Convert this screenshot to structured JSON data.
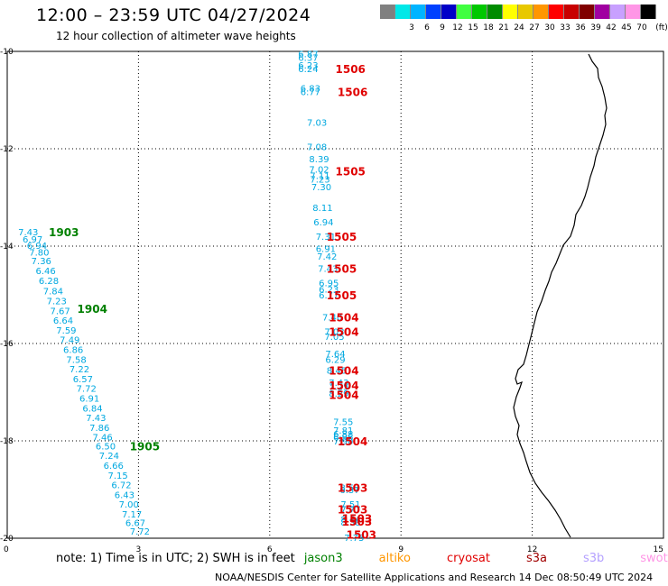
{
  "header": {
    "title": "12:00 – 23:59 UTC 04/27/2024",
    "subtitle": "12 hour collection of altimeter wave heights"
  },
  "colorbar": {
    "unit_label": "(ft)",
    "swatches": [
      {
        "label": "",
        "color": "#808080"
      },
      {
        "label": "3",
        "color": "#00e8e8"
      },
      {
        "label": "6",
        "color": "#00b4ff"
      },
      {
        "label": "9",
        "color": "#0040ff"
      },
      {
        "label": "12",
        "color": "#0000c8"
      },
      {
        "label": "15",
        "color": "#40ff40"
      },
      {
        "label": "18",
        "color": "#00c800"
      },
      {
        "label": "21",
        "color": "#008c00"
      },
      {
        "label": "24",
        "color": "#ffff00"
      },
      {
        "label": "27",
        "color": "#e8c800"
      },
      {
        "label": "30",
        "color": "#ff9600"
      },
      {
        "label": "33",
        "color": "#ff0000"
      },
      {
        "label": "36",
        "color": "#c80000"
      },
      {
        "label": "39",
        "color": "#800000"
      },
      {
        "label": "42",
        "color": "#a000a0"
      },
      {
        "label": "45",
        "color": "#c8a0ff"
      },
      {
        "label": "70",
        "color": "#ff96e6"
      },
      {
        "label": "",
        "color": "#000000"
      }
    ]
  },
  "note": {
    "prefix": "note: 1) Time is in UTC; 2) SWH is in feet",
    "missions": [
      {
        "name": "jason3",
        "color": "#008000"
      },
      {
        "name": "altiko",
        "color": "#ff9600"
      },
      {
        "name": "cryosat",
        "color": "#e00000"
      },
      {
        "name": "s3a",
        "color": "#a00000"
      },
      {
        "name": "s3b",
        "color": "#b4a0ff"
      },
      {
        "name": "swot",
        "color": "#ff96e6"
      }
    ]
  },
  "credit": "NOAA/NESDIS Center for Satellite Applications and Research    14 Dec 08:50:49 UTC 2024",
  "chart_data": {
    "type": "scatter",
    "xlim": [
      0,
      15
    ],
    "ylim": [
      -20,
      -10
    ],
    "x_ticks": [
      "0",
      "3",
      "6",
      "9",
      "12",
      "15"
    ],
    "y_ticks": [
      "-10",
      "-12",
      "-14",
      "-16",
      "-18",
      "-20"
    ],
    "grid": true,
    "value_color": "#00a8e0",
    "track_labels": [
      {
        "text": "1506",
        "x": 7.5,
        "y": -10.35,
        "color": "#e00000"
      },
      {
        "text": "1506",
        "x": 7.55,
        "y": -10.82,
        "color": "#e00000"
      },
      {
        "text": "1505",
        "x": 7.5,
        "y": -12.45,
        "color": "#e00000"
      },
      {
        "text": "1505",
        "x": 7.3,
        "y": -13.8,
        "color": "#e00000"
      },
      {
        "text": "1505",
        "x": 7.3,
        "y": -14.45,
        "color": "#e00000"
      },
      {
        "text": "1505",
        "x": 7.3,
        "y": -15.0,
        "color": "#e00000"
      },
      {
        "text": "1504",
        "x": 7.35,
        "y": -15.45,
        "color": "#e00000"
      },
      {
        "text": "1504",
        "x": 7.35,
        "y": -15.75,
        "color": "#e00000"
      },
      {
        "text": "1504",
        "x": 7.35,
        "y": -16.55,
        "color": "#e00000"
      },
      {
        "text": "1504",
        "x": 7.35,
        "y": -16.85,
        "color": "#e00000"
      },
      {
        "text": "1504",
        "x": 7.35,
        "y": -17.05,
        "color": "#e00000"
      },
      {
        "text": "1504",
        "x": 7.55,
        "y": -18.0,
        "color": "#e00000"
      },
      {
        "text": "1503",
        "x": 7.55,
        "y": -18.95,
        "color": "#e00000"
      },
      {
        "text": "1503",
        "x": 7.55,
        "y": -19.4,
        "color": "#e00000"
      },
      {
        "text": "1503",
        "x": 7.65,
        "y": -19.58,
        "color": "#e00000"
      },
      {
        "text": "1503",
        "x": 7.65,
        "y": -19.65,
        "color": "#e00000"
      },
      {
        "text": "1503",
        "x": 7.75,
        "y": -19.92,
        "color": "#e00000"
      },
      {
        "text": "1903",
        "x": 0.95,
        "y": -13.7,
        "color": "#008000"
      },
      {
        "text": "1904",
        "x": 1.6,
        "y": -15.28,
        "color": "#008000"
      },
      {
        "text": "1905",
        "x": 2.8,
        "y": -18.1,
        "color": "#008000"
      }
    ],
    "values": [
      {
        "text": "6.87",
        "x": 6.65,
        "y": -10.05
      },
      {
        "text": "6.37",
        "x": 6.65,
        "y": -10.12
      },
      {
        "text": "6.23",
        "x": 6.65,
        "y": -10.28
      },
      {
        "text": "6.24",
        "x": 6.65,
        "y": -10.35
      },
      {
        "text": "6.83",
        "x": 6.7,
        "y": -10.75
      },
      {
        "text": "6.77",
        "x": 6.7,
        "y": -10.82
      },
      {
        "text": "7.03",
        "x": 6.85,
        "y": -11.45
      },
      {
        "text": "7.08",
        "x": 6.85,
        "y": -11.95
      },
      {
        "text": "8.39",
        "x": 6.9,
        "y": -12.2
      },
      {
        "text": "7.02",
        "x": 6.9,
        "y": -12.42
      },
      {
        "text": "7.11",
        "x": 6.92,
        "y": -12.55
      },
      {
        "text": "7.23",
        "x": 6.92,
        "y": -12.62
      },
      {
        "text": "7.30",
        "x": 6.95,
        "y": -12.78
      },
      {
        "text": "8.11",
        "x": 6.98,
        "y": -13.2
      },
      {
        "text": "6.94",
        "x": 7.0,
        "y": -13.5
      },
      {
        "text": "7.31",
        "x": 7.05,
        "y": -13.8
      },
      {
        "text": "6.91",
        "x": 7.05,
        "y": -14.05
      },
      {
        "text": "7.42",
        "x": 7.08,
        "y": -14.2
      },
      {
        "text": "7.43",
        "x": 7.1,
        "y": -14.45
      },
      {
        "text": "6.95",
        "x": 7.12,
        "y": -14.75
      },
      {
        "text": "6.23",
        "x": 7.12,
        "y": -14.88
      },
      {
        "text": "6.77",
        "x": 7.12,
        "y": -15.0
      },
      {
        "text": "7.40",
        "x": 7.2,
        "y": -15.45
      },
      {
        "text": "7.03",
        "x": 7.25,
        "y": -15.75
      },
      {
        "text": "7.05",
        "x": 7.25,
        "y": -15.85
      },
      {
        "text": "7.64",
        "x": 7.27,
        "y": -16.2
      },
      {
        "text": "6.29",
        "x": 7.27,
        "y": -16.32
      },
      {
        "text": "8.45",
        "x": 7.3,
        "y": -16.55
      },
      {
        "text": "7.43",
        "x": 7.35,
        "y": -16.8
      },
      {
        "text": "7.25",
        "x": 7.35,
        "y": -16.88
      },
      {
        "text": "8.29",
        "x": 7.35,
        "y": -17.02
      },
      {
        "text": "7.55",
        "x": 7.45,
        "y": -17.6
      },
      {
        "text": "7.81",
        "x": 7.45,
        "y": -17.78
      },
      {
        "text": "6.88",
        "x": 7.45,
        "y": -17.85
      },
      {
        "text": "6.96",
        "x": 7.45,
        "y": -17.92
      },
      {
        "text": "7.90",
        "x": 7.45,
        "y": -18.0
      },
      {
        "text": "8.57",
        "x": 7.6,
        "y": -18.95
      },
      {
        "text": "6.37",
        "x": 7.6,
        "y": -19.0
      },
      {
        "text": "7.51",
        "x": 7.62,
        "y": -19.3
      },
      {
        "text": "7.77",
        "x": 7.62,
        "y": -19.4
      },
      {
        "text": "8.44",
        "x": 7.62,
        "y": -19.6
      },
      {
        "text": "8.38",
        "x": 7.62,
        "y": -19.67
      },
      {
        "text": "7.75",
        "x": 7.7,
        "y": -19.98
      },
      {
        "text": "7.43",
        "x": 0.25,
        "y": -13.7
      },
      {
        "text": "6.97",
        "x": 0.35,
        "y": -13.85
      },
      {
        "text": "6.94",
        "x": 0.45,
        "y": -13.98
      },
      {
        "text": "7.80",
        "x": 0.5,
        "y": -14.12
      },
      {
        "text": "7.36",
        "x": 0.55,
        "y": -14.3
      },
      {
        "text": "6.46",
        "x": 0.65,
        "y": -14.5
      },
      {
        "text": "6.28",
        "x": 0.72,
        "y": -14.7
      },
      {
        "text": "7.84",
        "x": 0.82,
        "y": -14.92
      },
      {
        "text": "7.23",
        "x": 0.9,
        "y": -15.12
      },
      {
        "text": "7.67",
        "x": 0.98,
        "y": -15.32
      },
      {
        "text": "6.64",
        "x": 1.05,
        "y": -15.52
      },
      {
        "text": "7.59",
        "x": 1.12,
        "y": -15.72
      },
      {
        "text": "7.49",
        "x": 1.2,
        "y": -15.92
      },
      {
        "text": "6.86",
        "x": 1.28,
        "y": -16.12
      },
      {
        "text": "7.58",
        "x": 1.35,
        "y": -16.32
      },
      {
        "text": "7.22",
        "x": 1.42,
        "y": -16.52
      },
      {
        "text": "6.57",
        "x": 1.5,
        "y": -16.72
      },
      {
        "text": "7.72",
        "x": 1.58,
        "y": -16.92
      },
      {
        "text": "6.91",
        "x": 1.65,
        "y": -17.12
      },
      {
        "text": "6.84",
        "x": 1.72,
        "y": -17.32
      },
      {
        "text": "7.43",
        "x": 1.8,
        "y": -17.52
      },
      {
        "text": "7.86",
        "x": 1.88,
        "y": -17.72
      },
      {
        "text": "7.46",
        "x": 1.95,
        "y": -17.92
      },
      {
        "text": "6.50",
        "x": 2.02,
        "y": -18.1
      },
      {
        "text": "7.24",
        "x": 2.1,
        "y": -18.3
      },
      {
        "text": "6.66",
        "x": 2.2,
        "y": -18.5
      },
      {
        "text": "7.15",
        "x": 2.3,
        "y": -18.7
      },
      {
        "text": "6.72",
        "x": 2.38,
        "y": -18.9
      },
      {
        "text": "6.43",
        "x": 2.45,
        "y": -19.1
      },
      {
        "text": "7.00",
        "x": 2.55,
        "y": -19.3
      },
      {
        "text": "7.17",
        "x": 2.62,
        "y": -19.5
      },
      {
        "text": "6.67",
        "x": 2.7,
        "y": -19.68
      },
      {
        "text": "7.72",
        "x": 2.8,
        "y": -19.85
      }
    ]
  }
}
